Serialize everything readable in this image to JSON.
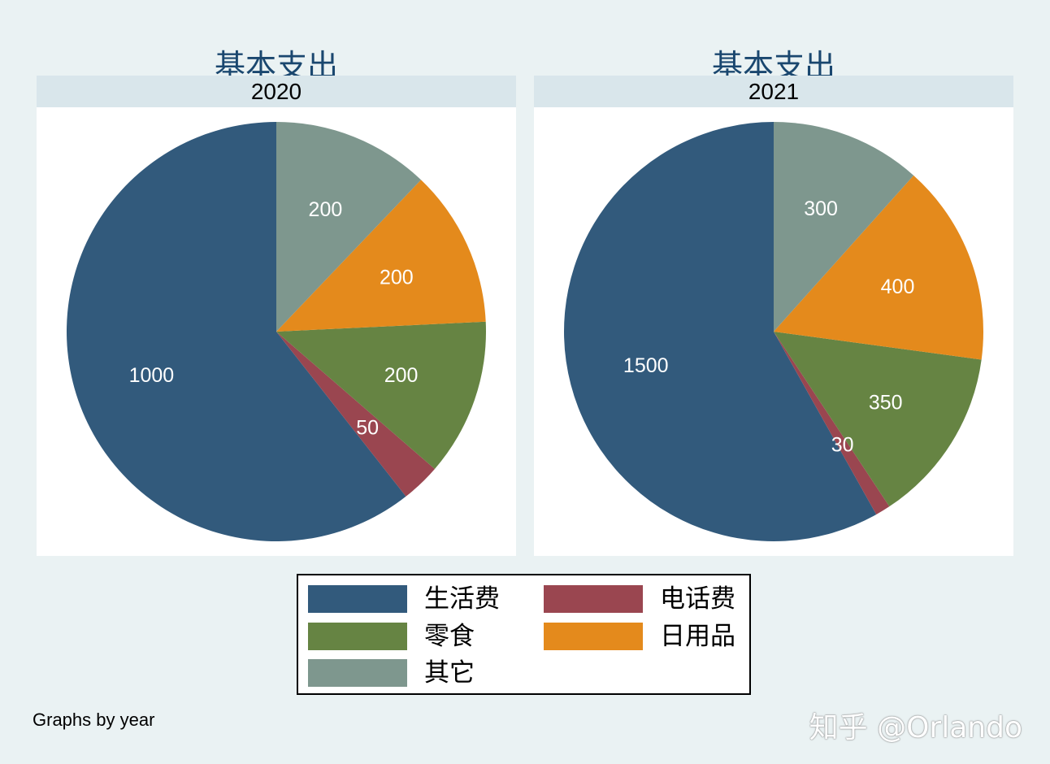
{
  "chart_data": [
    {
      "type": "pie",
      "title": "基本支出",
      "subtitle": "2020",
      "slices": [
        {
          "name": "生活费",
          "value": 1000,
          "color": "#325a7c"
        },
        {
          "name": "电话费",
          "value": 50,
          "color": "#9a4650"
        },
        {
          "name": "零食",
          "value": 200,
          "color": "#668443"
        },
        {
          "name": "日用品",
          "value": 200,
          "color": "#e48a1c"
        },
        {
          "name": "其它",
          "value": 200,
          "color": "#7e978e"
        }
      ]
    },
    {
      "type": "pie",
      "title": "基本支出",
      "subtitle": "2021",
      "slices": [
        {
          "name": "生活费",
          "value": 1500,
          "color": "#325a7c"
        },
        {
          "name": "电话费",
          "value": 30,
          "color": "#9a4650"
        },
        {
          "name": "零食",
          "value": 350,
          "color": "#668443"
        },
        {
          "name": "日用品",
          "value": 400,
          "color": "#e48a1c"
        },
        {
          "name": "其它",
          "value": 300,
          "color": "#7e978e"
        }
      ]
    }
  ],
  "legend": {
    "items": [
      {
        "label": "生活费",
        "color": "#325a7c"
      },
      {
        "label": "电话费",
        "color": "#9a4650"
      },
      {
        "label": "零食",
        "color": "#668443"
      },
      {
        "label": "日用品",
        "color": "#e48a1c"
      },
      {
        "label": "其它",
        "color": "#7e978e"
      }
    ]
  },
  "note": "Graphs by year",
  "watermark": "知乎 @Orlando"
}
